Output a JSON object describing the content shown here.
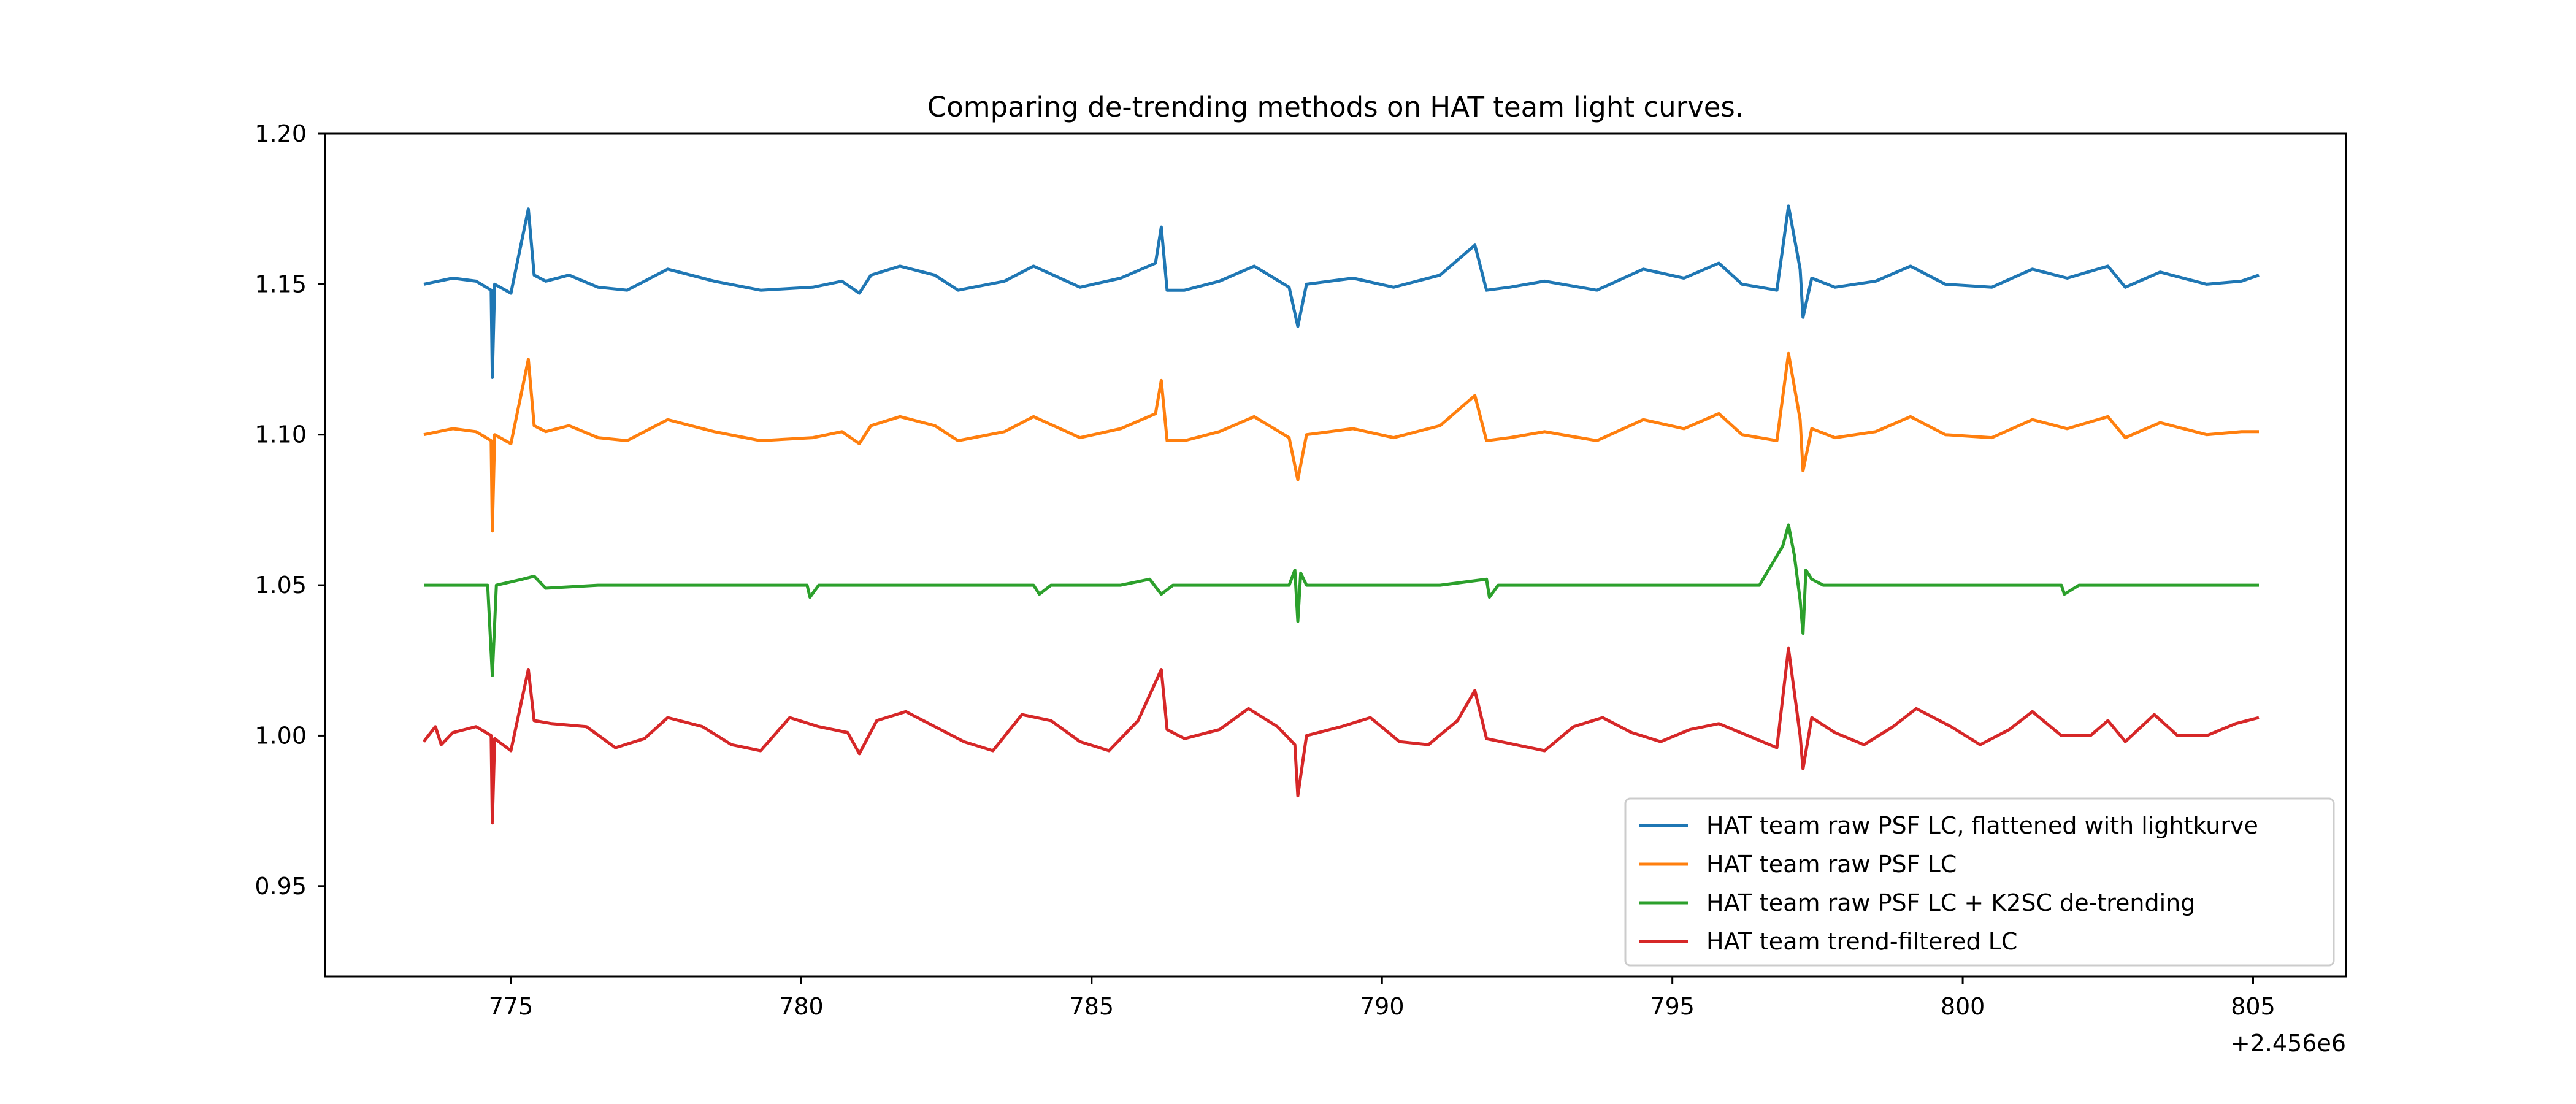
{
  "chart_data": {
    "type": "line",
    "title": "Comparing de-trending methods on HAT team light curves.",
    "xlabel": "",
    "ylabel": "",
    "x_offset_label": "+2.456e6",
    "xlim": [
      771.8,
      806.6
    ],
    "ylim": [
      0.92,
      1.2
    ],
    "x_ticks": [
      775,
      780,
      785,
      790,
      795,
      800,
      805
    ],
    "x_tick_labels": [
      "775",
      "780",
      "785",
      "790",
      "795",
      "800",
      "805"
    ],
    "y_ticks": [
      0.95,
      1.0,
      1.05,
      1.1,
      1.15,
      1.2
    ],
    "y_tick_labels": [
      "0.95",
      "1.00",
      "1.05",
      "1.10",
      "1.15",
      "1.20"
    ],
    "grid": false,
    "legend_position": "lower-right",
    "series": [
      {
        "name": "HAT team raw PSF LC, flattened with lightkurve",
        "color": "#1f77b4",
        "x": [
          773.5,
          774.0,
          774.4,
          774.66,
          774.68,
          774.72,
          775.0,
          775.3,
          775.4,
          775.6,
          776.0,
          776.5,
          777.0,
          777.7,
          778.5,
          779.3,
          780.2,
          780.7,
          781.0,
          781.2,
          781.7,
          782.3,
          782.7,
          783.5,
          784.0,
          784.8,
          785.5,
          786.1,
          786.2,
          786.3,
          786.6,
          787.2,
          787.8,
          788.4,
          788.55,
          788.7,
          789.5,
          790.2,
          791.0,
          791.6,
          791.8,
          792.2,
          792.8,
          793.7,
          794.5,
          795.2,
          795.8,
          796.2,
          796.8,
          797.0,
          797.2,
          797.25,
          797.4,
          797.8,
          798.5,
          799.1,
          799.7,
          800.5,
          801.2,
          801.8,
          802.5,
          802.8,
          803.4,
          804.2,
          804.8,
          805.1
        ],
        "y": [
          1.15,
          1.152,
          1.151,
          1.148,
          1.119,
          1.15,
          1.147,
          1.175,
          1.153,
          1.151,
          1.153,
          1.149,
          1.148,
          1.155,
          1.151,
          1.148,
          1.149,
          1.151,
          1.147,
          1.153,
          1.156,
          1.153,
          1.148,
          1.151,
          1.156,
          1.149,
          1.152,
          1.157,
          1.169,
          1.148,
          1.148,
          1.151,
          1.156,
          1.149,
          1.136,
          1.15,
          1.152,
          1.149,
          1.153,
          1.163,
          1.148,
          1.149,
          1.151,
          1.148,
          1.155,
          1.152,
          1.157,
          1.15,
          1.148,
          1.176,
          1.155,
          1.139,
          1.152,
          1.149,
          1.151,
          1.156,
          1.15,
          1.149,
          1.155,
          1.152,
          1.156,
          1.149,
          1.154,
          1.15,
          1.151,
          1.153
        ]
      },
      {
        "name": "HAT team raw PSF LC",
        "color": "#ff7f0e",
        "x": [
          773.5,
          774.0,
          774.4,
          774.66,
          774.68,
          774.72,
          775.0,
          775.3,
          775.4,
          775.6,
          776.0,
          776.5,
          777.0,
          777.7,
          778.5,
          779.3,
          780.2,
          780.7,
          781.0,
          781.2,
          781.7,
          782.3,
          782.7,
          783.5,
          784.0,
          784.8,
          785.5,
          786.1,
          786.2,
          786.3,
          786.6,
          787.2,
          787.8,
          788.4,
          788.55,
          788.7,
          789.5,
          790.2,
          791.0,
          791.6,
          791.8,
          792.2,
          792.8,
          793.7,
          794.5,
          795.2,
          795.8,
          796.2,
          796.8,
          797.0,
          797.2,
          797.25,
          797.4,
          797.8,
          798.5,
          799.1,
          799.7,
          800.5,
          801.2,
          801.8,
          802.5,
          802.8,
          803.4,
          804.2,
          804.8,
          805.1
        ],
        "y": [
          1.1,
          1.102,
          1.101,
          1.098,
          1.068,
          1.1,
          1.097,
          1.125,
          1.103,
          1.101,
          1.103,
          1.099,
          1.098,
          1.105,
          1.101,
          1.098,
          1.099,
          1.101,
          1.097,
          1.103,
          1.106,
          1.103,
          1.098,
          1.101,
          1.106,
          1.099,
          1.102,
          1.107,
          1.118,
          1.098,
          1.098,
          1.101,
          1.106,
          1.099,
          1.085,
          1.1,
          1.102,
          1.099,
          1.103,
          1.113,
          1.098,
          1.099,
          1.101,
          1.098,
          1.105,
          1.102,
          1.107,
          1.1,
          1.098,
          1.127,
          1.105,
          1.088,
          1.102,
          1.099,
          1.101,
          1.106,
          1.1,
          1.099,
          1.105,
          1.102,
          1.106,
          1.099,
          1.104,
          1.1,
          1.101,
          1.101
        ]
      },
      {
        "name": "HAT team raw PSF LC + K2SC de-trending",
        "color": "#2ca02c",
        "x": [
          773.5,
          774.0,
          774.6,
          774.68,
          774.75,
          775.2,
          775.4,
          775.6,
          776.5,
          778.0,
          779.5,
          780.1,
          780.15,
          780.3,
          781.5,
          783.0,
          784.0,
          784.1,
          784.3,
          785.5,
          786.0,
          786.2,
          786.4,
          787.5,
          788.4,
          788.5,
          788.55,
          788.6,
          788.7,
          789.5,
          791.0,
          791.8,
          791.85,
          792.0,
          793.5,
          795.0,
          796.5,
          796.9,
          797.0,
          797.1,
          797.2,
          797.25,
          797.3,
          797.4,
          797.6,
          798.5,
          800.0,
          801.7,
          801.75,
          802.0,
          803.5,
          805.1
        ],
        "y": [
          1.05,
          1.05,
          1.05,
          1.02,
          1.05,
          1.052,
          1.053,
          1.049,
          1.05,
          1.05,
          1.05,
          1.05,
          1.046,
          1.05,
          1.05,
          1.05,
          1.05,
          1.047,
          1.05,
          1.05,
          1.052,
          1.047,
          1.05,
          1.05,
          1.05,
          1.055,
          1.038,
          1.054,
          1.05,
          1.05,
          1.05,
          1.052,
          1.046,
          1.05,
          1.05,
          1.05,
          1.05,
          1.063,
          1.07,
          1.06,
          1.045,
          1.034,
          1.055,
          1.052,
          1.05,
          1.05,
          1.05,
          1.05,
          1.047,
          1.05,
          1.05,
          1.05
        ]
      },
      {
        "name": "HAT team trend-filtered LC",
        "color": "#d62728",
        "x": [
          773.5,
          773.7,
          773.8,
          774.0,
          774.4,
          774.66,
          774.68,
          774.72,
          775.0,
          775.3,
          775.4,
          775.7,
          776.3,
          776.8,
          777.3,
          777.7,
          778.3,
          778.8,
          779.3,
          779.8,
          780.3,
          780.8,
          781.0,
          781.3,
          781.8,
          782.3,
          782.8,
          783.3,
          783.8,
          784.3,
          784.8,
          785.3,
          785.8,
          786.2,
          786.3,
          786.6,
          787.2,
          787.7,
          788.2,
          788.5,
          788.55,
          788.7,
          789.3,
          789.8,
          790.3,
          790.8,
          791.3,
          791.6,
          791.8,
          792.3,
          792.8,
          793.3,
          793.8,
          794.3,
          794.8,
          795.3,
          795.8,
          796.3,
          796.8,
          797.0,
          797.2,
          797.25,
          797.4,
          797.8,
          798.3,
          798.8,
          799.2,
          799.8,
          800.3,
          800.8,
          801.2,
          801.7,
          802.2,
          802.5,
          802.8,
          803.3,
          803.7,
          804.2,
          804.7,
          805.1
        ],
        "y": [
          0.998,
          1.003,
          0.997,
          1.001,
          1.003,
          1.0,
          0.971,
          0.999,
          0.995,
          1.022,
          1.005,
          1.004,
          1.003,
          0.996,
          0.999,
          1.006,
          1.003,
          0.997,
          0.995,
          1.006,
          1.003,
          1.001,
          0.994,
          1.005,
          1.008,
          1.003,
          0.998,
          0.995,
          1.007,
          1.005,
          0.998,
          0.995,
          1.005,
          1.022,
          1.002,
          0.999,
          1.002,
          1.009,
          1.003,
          0.997,
          0.98,
          1.0,
          1.003,
          1.006,
          0.998,
          0.997,
          1.005,
          1.015,
          0.999,
          0.997,
          0.995,
          1.003,
          1.006,
          1.001,
          0.998,
          1.002,
          1.004,
          1.0,
          0.996,
          1.029,
          1.0,
          0.989,
          1.006,
          1.001,
          0.997,
          1.003,
          1.009,
          1.003,
          0.997,
          1.002,
          1.008,
          1.0,
          1.0,
          1.005,
          0.998,
          1.007,
          1.0,
          1.0,
          1.004,
          1.006
        ]
      }
    ]
  }
}
